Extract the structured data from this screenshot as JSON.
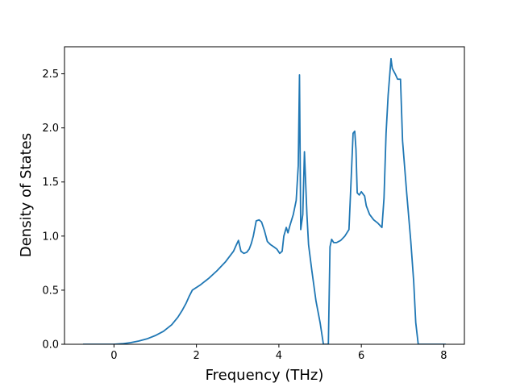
{
  "chart_data": {
    "type": "line",
    "title": "",
    "xlabel": "Frequency (THz)",
    "ylabel": "Density of States",
    "xlim": [
      -1.2,
      8.5
    ],
    "ylim": [
      0.0,
      2.75
    ],
    "xticks": [
      0,
      2,
      4,
      6,
      8
    ],
    "yticks": [
      0.0,
      0.5,
      1.0,
      1.5,
      2.0,
      2.5
    ],
    "xtick_labels": [
      "0",
      "2",
      "4",
      "6",
      "8"
    ],
    "ytick_labels": [
      "0.0",
      "0.5",
      "1.0",
      "1.5",
      "2.0",
      "2.5"
    ],
    "grid": false,
    "legend": "none",
    "colors": {
      "line": "#1f77b4",
      "axes": "#000000",
      "background": "#ffffff"
    },
    "series": [
      {
        "x": [
          -0.75,
          -0.3,
          0.0,
          0.2,
          0.4,
          0.6,
          0.8,
          1.0,
          1.2,
          1.4,
          1.55,
          1.65,
          1.75,
          1.82,
          1.9,
          2.1,
          2.3,
          2.5,
          2.7,
          2.9,
          2.97,
          3.02,
          3.08,
          3.15,
          3.22,
          3.28,
          3.33,
          3.38,
          3.45,
          3.52,
          3.58,
          3.65,
          3.72,
          3.8,
          3.88,
          3.95,
          4.02,
          4.08,
          4.12,
          4.18,
          4.22,
          4.27,
          4.35,
          4.42,
          4.47,
          4.5,
          4.53,
          4.58,
          4.62,
          4.68,
          4.72,
          4.8,
          4.9,
          5.0,
          5.08,
          5.2,
          5.24,
          5.28,
          5.33,
          5.4,
          5.5,
          5.6,
          5.7,
          5.75,
          5.8,
          5.84,
          5.87,
          5.9,
          5.95,
          6.0,
          6.08,
          6.12,
          6.2,
          6.3,
          6.4,
          6.5,
          6.55,
          6.6,
          6.65,
          6.72,
          6.75,
          6.82,
          6.88,
          6.95,
          7.0,
          7.1,
          7.2,
          7.27,
          7.32,
          7.38,
          8.05
        ],
        "y": [
          0.0,
          0.0,
          0.0,
          0.005,
          0.015,
          0.03,
          0.05,
          0.08,
          0.12,
          0.18,
          0.25,
          0.31,
          0.38,
          0.44,
          0.5,
          0.55,
          0.61,
          0.68,
          0.76,
          0.86,
          0.92,
          0.96,
          0.86,
          0.84,
          0.85,
          0.88,
          0.93,
          1.0,
          1.14,
          1.15,
          1.13,
          1.05,
          0.95,
          0.92,
          0.9,
          0.88,
          0.84,
          0.86,
          1.0,
          1.08,
          1.03,
          1.1,
          1.2,
          1.33,
          1.65,
          2.49,
          1.06,
          1.2,
          1.78,
          1.2,
          0.92,
          0.68,
          0.4,
          0.2,
          0.0,
          0.0,
          0.9,
          0.97,
          0.94,
          0.94,
          0.96,
          1.0,
          1.06,
          1.5,
          1.95,
          1.97,
          1.8,
          1.4,
          1.38,
          1.41,
          1.37,
          1.28,
          1.2,
          1.15,
          1.12,
          1.08,
          1.35,
          1.95,
          2.3,
          2.64,
          2.55,
          2.5,
          2.45,
          2.45,
          1.88,
          1.4,
          0.95,
          0.58,
          0.2,
          0.0,
          0.0
        ]
      }
    ]
  }
}
